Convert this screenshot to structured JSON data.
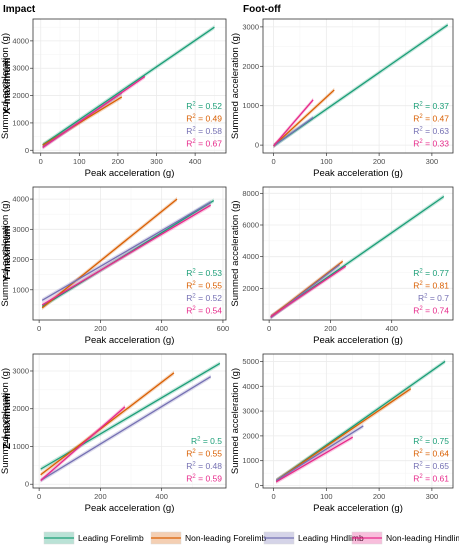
{
  "chart_data": {
    "type": "line",
    "columns": [
      "Impact",
      "Foot-off"
    ],
    "rows": [
      "X-maximum",
      "Y-maximum",
      "Z-maximum"
    ],
    "xlabel": "Peak acceleration (g)",
    "ylabel": "Summed acceleration (g)",
    "legend_position": "bottom",
    "series_names": [
      "Leading Forelimb",
      "Non-leading Forelimb",
      "Leading Hindlimb",
      "Non-leading Hindlimb"
    ],
    "colors": {
      "Leading Forelimb": "#1b9e77",
      "Non-leading Forelimb": "#d95f02",
      "Leading Hindlimb": "#7570b3",
      "Non-leading Hindlimb": "#e7298a",
      "panel_border": "#333333",
      "grid": "#ebebeb"
    },
    "panels": [
      {
        "row": "X-maximum",
        "col": "Impact",
        "xlim": [
          -20,
          480
        ],
        "ylim": [
          -100,
          4800
        ],
        "xticks": [
          0,
          100,
          200,
          300,
          400
        ],
        "yticks": [
          0,
          1000,
          2000,
          3000,
          4000
        ],
        "series": [
          {
            "name": "Leading Forelimb",
            "x": [
              5,
              450
            ],
            "y": [
              200,
              4500
            ],
            "r2": "0.52"
          },
          {
            "name": "Non-leading Forelimb",
            "x": [
              5,
              210
            ],
            "y": [
              180,
              1950
            ],
            "r2": "0.49"
          },
          {
            "name": "Leading Hindlimb",
            "x": [
              5,
              210
            ],
            "y": [
              120,
              2100
            ],
            "r2": "0.58"
          },
          {
            "name": "Non-leading Hindlimb",
            "x": [
              5,
              270
            ],
            "y": [
              100,
              2700
            ],
            "r2": "0.67"
          }
        ]
      },
      {
        "row": "X-maximum",
        "col": "Foot-off",
        "xlim": [
          -20,
          340
        ],
        "ylim": [
          -200,
          3200
        ],
        "xticks": [
          0,
          100,
          200,
          300
        ],
        "yticks": [
          0,
          1000,
          2000,
          3000
        ],
        "series": [
          {
            "name": "Leading Forelimb",
            "x": [
              0,
              330
            ],
            "y": [
              -20,
              3050
            ],
            "r2": "0.37"
          },
          {
            "name": "Non-leading Forelimb",
            "x": [
              0,
              115
            ],
            "y": [
              -20,
              1400
            ],
            "r2": "0.47"
          },
          {
            "name": "Leading Hindlimb",
            "x": [
              0,
              75
            ],
            "y": [
              -20,
              700
            ],
            "r2": "0.63"
          },
          {
            "name": "Non-leading Hindlimb",
            "x": [
              0,
              75
            ],
            "y": [
              -20,
              1150
            ],
            "r2": "0.33"
          }
        ]
      },
      {
        "row": "Y-maximum",
        "col": "Impact",
        "xlim": [
          -20,
          610
        ],
        "ylim": [
          0,
          4400
        ],
        "xticks": [
          0,
          200,
          400,
          600
        ],
        "yticks": [
          1000,
          2000,
          3000,
          4000
        ],
        "series": [
          {
            "name": "Leading Forelimb",
            "x": [
              10,
              570
            ],
            "y": [
              450,
              3950
            ],
            "r2": "0.53"
          },
          {
            "name": "Non-leading Forelimb",
            "x": [
              10,
              450
            ],
            "y": [
              400,
              4000
            ],
            "r2": "0.55"
          },
          {
            "name": "Leading Hindlimb",
            "x": [
              10,
              560
            ],
            "y": [
              650,
              3900
            ],
            "r2": "0.52"
          },
          {
            "name": "Non-leading Hindlimb",
            "x": [
              10,
              560
            ],
            "y": [
              500,
              3800
            ],
            "r2": "0.54"
          }
        ]
      },
      {
        "row": "Y-maximum",
        "col": "Foot-off",
        "xlim": [
          -20,
          600
        ],
        "ylim": [
          0,
          8400
        ],
        "xticks": [
          0,
          200,
          400
        ],
        "yticks": [
          2000,
          4000,
          6000,
          8000
        ],
        "series": [
          {
            "name": "Leading Forelimb",
            "x": [
              5,
              570
            ],
            "y": [
              200,
              7800
            ],
            "r2": "0.77"
          },
          {
            "name": "Non-leading Forelimb",
            "x": [
              5,
              240
            ],
            "y": [
              200,
              3700
            ],
            "r2": "0.81"
          },
          {
            "name": "Leading Hindlimb",
            "x": [
              5,
              230
            ],
            "y": [
              150,
              3500
            ],
            "r2": "0.7"
          },
          {
            "name": "Non-leading Hindlimb",
            "x": [
              5,
              250
            ],
            "y": [
              200,
              3400
            ],
            "r2": "0.74"
          }
        ]
      },
      {
        "row": "Z-maximum",
        "col": "Impact",
        "xlim": [
          -20,
          610
        ],
        "ylim": [
          -100,
          3450
        ],
        "xticks": [
          0,
          200,
          400
        ],
        "yticks": [
          0,
          1000,
          2000,
          3000
        ],
        "series": [
          {
            "name": "Leading Forelimb",
            "x": [
              5,
              590
            ],
            "y": [
              400,
              3200
            ],
            "r2": "0.5"
          },
          {
            "name": "Non-leading Forelimb",
            "x": [
              5,
              440
            ],
            "y": [
              250,
              2950
            ],
            "r2": "0.55"
          },
          {
            "name": "Leading Hindlimb",
            "x": [
              5,
              560
            ],
            "y": [
              100,
              2850
            ],
            "r2": "0.48"
          },
          {
            "name": "Non-leading Hindlimb",
            "x": [
              5,
              280
            ],
            "y": [
              100,
              2050
            ],
            "r2": "0.59"
          }
        ]
      },
      {
        "row": "Z-maximum",
        "col": "Foot-off",
        "xlim": [
          -20,
          340
        ],
        "ylim": [
          -100,
          5300
        ],
        "xticks": [
          0,
          100,
          200,
          300
        ],
        "yticks": [
          0,
          1000,
          2000,
          3000,
          4000,
          5000
        ],
        "series": [
          {
            "name": "Leading Forelimb",
            "x": [
              5,
              325
            ],
            "y": [
              200,
              5000
            ],
            "r2": "0.75"
          },
          {
            "name": "Non-leading Forelimb",
            "x": [
              5,
              260
            ],
            "y": [
              200,
              3900
            ],
            "r2": "0.64"
          },
          {
            "name": "Leading Hindlimb",
            "x": [
              5,
              170
            ],
            "y": [
              200,
              2400
            ],
            "r2": "0.65"
          },
          {
            "name": "Non-leading Hindlimb",
            "x": [
              5,
              150
            ],
            "y": [
              150,
              1950
            ],
            "r2": "0.61"
          }
        ]
      }
    ]
  }
}
